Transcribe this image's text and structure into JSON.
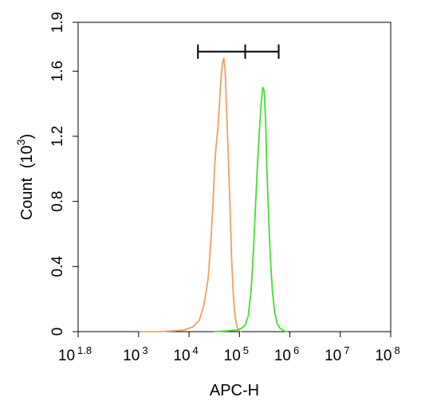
{
  "chart_data": {
    "type": "line",
    "title": "",
    "xlabel": "APC-H",
    "ylabel": "Count",
    "ylabel_unit_base": "10",
    "ylabel_unit_exp": "3",
    "x_scale": "log",
    "xlim": [
      63.0957,
      100000000
    ],
    "ylim": [
      0,
      1.9
    ],
    "grid": false,
    "legend": "none",
    "x_ticks": [
      {
        "value": 63.0957,
        "base": "10",
        "exp": "1.8"
      },
      {
        "value": 1000,
        "base": "10",
        "exp": "3"
      },
      {
        "value": 10000,
        "base": "10",
        "exp": "4"
      },
      {
        "value": 100000,
        "base": "10",
        "exp": "5"
      },
      {
        "value": 1000000,
        "base": "10",
        "exp": "6"
      },
      {
        "value": 10000000,
        "base": "10",
        "exp": "7"
      },
      {
        "value": 100000000,
        "base": "10",
        "exp": "8"
      }
    ],
    "y_ticks": [
      {
        "value": 0,
        "label": "0"
      },
      {
        "value": 0.4,
        "label": "0.4"
      },
      {
        "value": 0.8,
        "label": "0.8"
      },
      {
        "value": 1.2,
        "label": "1.2"
      },
      {
        "value": 1.6,
        "label": "1.6"
      },
      {
        "value": 1.9,
        "label": "1.9"
      }
    ],
    "series": [
      {
        "color": "#f0a060",
        "x": [
          1000,
          2500,
          5000,
          8000,
          12000,
          16000,
          20000,
          24000,
          27000,
          30000,
          32000,
          34000,
          36000,
          38000,
          40000,
          43000,
          46000,
          49000,
          52000,
          55000,
          58000,
          62000,
          66000,
          70000,
          75000,
          80000,
          86000,
          92000,
          100000,
          110000
        ],
        "y": [
          0,
          0,
          0.005,
          0.01,
          0.03,
          0.07,
          0.17,
          0.33,
          0.55,
          0.8,
          1.0,
          1.12,
          1.2,
          1.28,
          1.4,
          1.55,
          1.65,
          1.68,
          1.6,
          1.4,
          1.2,
          0.95,
          0.7,
          0.45,
          0.25,
          0.12,
          0.05,
          0.02,
          0.005,
          0
        ]
      },
      {
        "color": "#44dd33",
        "x": [
          30000,
          60000,
          90000,
          110000,
          130000,
          150000,
          170000,
          190000,
          210000,
          230000,
          250000,
          270000,
          290000,
          310000,
          330000,
          350000,
          380000,
          410000,
          450000,
          500000,
          560000,
          640000,
          760000,
          900000
        ],
        "y": [
          0,
          0.005,
          0.01,
          0.02,
          0.04,
          0.1,
          0.25,
          0.5,
          0.8,
          1.05,
          1.25,
          1.4,
          1.5,
          1.48,
          1.3,
          1.0,
          0.7,
          0.45,
          0.25,
          0.12,
          0.05,
          0.02,
          0.005,
          0
        ]
      }
    ],
    "gate": {
      "x_start": 15000,
      "x_mid": 130000,
      "x_end": 600000,
      "y": 1.72
    }
  }
}
